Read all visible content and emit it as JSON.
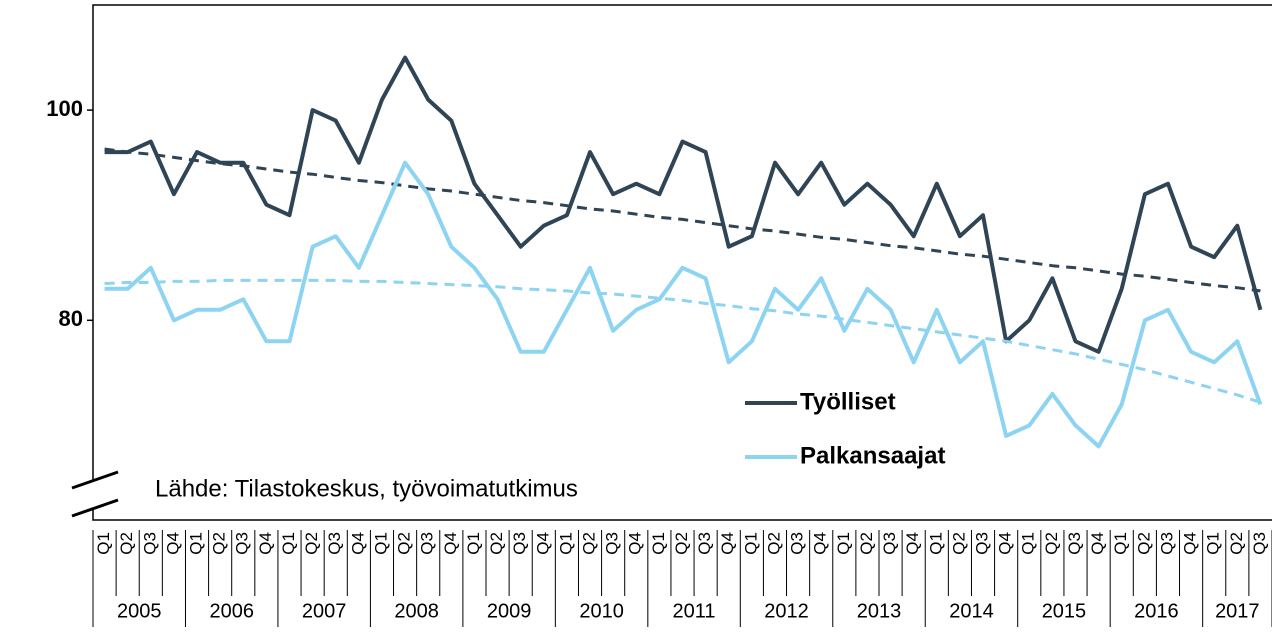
{
  "chart_data": {
    "type": "line",
    "annotation": "Lähde: Tilastokeskus, työvoimatutkimus",
    "categories": [
      "Q1",
      "Q2",
      "Q3",
      "Q4",
      "Q1",
      "Q2",
      "Q3",
      "Q4",
      "Q1",
      "Q2",
      "Q3",
      "Q4",
      "Q1",
      "Q2",
      "Q3",
      "Q4",
      "Q1",
      "Q2",
      "Q3",
      "Q4",
      "Q1",
      "Q2",
      "Q3",
      "Q4",
      "Q1",
      "Q2",
      "Q3",
      "Q4",
      "Q1",
      "Q2",
      "Q3",
      "Q4",
      "Q1",
      "Q2",
      "Q3",
      "Q4",
      "Q1",
      "Q2",
      "Q3",
      "Q4",
      "Q1",
      "Q2",
      "Q3",
      "Q4",
      "Q1",
      "Q2",
      "Q3",
      "Q4",
      "Q1",
      "Q2",
      "Q3"
    ],
    "years": [
      "2005",
      "2006",
      "2007",
      "2008",
      "2009",
      "2010",
      "2011",
      "2012",
      "2013",
      "2014",
      "2015",
      "2016",
      "2017"
    ],
    "ylim": [
      61,
      110
    ],
    "yticks": [
      80,
      100
    ],
    "legend": "right",
    "series": [
      {
        "name": "Työlliset",
        "color": "#2f4454",
        "values": [
          96,
          96,
          97,
          92,
          96,
          95,
          95,
          91,
          90,
          100,
          99,
          95,
          101,
          105,
          101,
          99,
          93,
          90,
          87,
          89,
          90,
          96,
          92,
          93,
          92,
          97,
          96,
          87,
          88,
          95,
          92,
          95,
          91,
          93,
          91,
          88,
          93,
          88,
          90,
          78,
          80,
          84,
          78,
          77,
          83,
          92,
          93,
          87,
          86,
          89,
          81
        ],
        "trend": [
          96.3,
          96.0,
          95.8,
          95.5,
          95.2,
          94.9,
          94.7,
          94.4,
          94.1,
          93.9,
          93.6,
          93.3,
          93.1,
          92.8,
          92.5,
          92.3,
          92.0,
          91.7,
          91.4,
          91.2,
          90.9,
          90.6,
          90.4,
          90.1,
          89.8,
          89.6,
          89.3,
          89.0,
          88.7,
          88.5,
          88.2,
          87.9,
          87.7,
          87.4,
          87.1,
          86.9,
          86.6,
          86.3,
          86.1,
          85.8,
          85.5,
          85.2,
          85.0,
          84.7,
          84.4,
          84.2,
          83.9,
          83.6,
          83.3,
          83.1,
          82.8
        ]
      },
      {
        "name": "Palkansaajat",
        "color": "#8dd3f2",
        "values": [
          83,
          83,
          85,
          80,
          81,
          81,
          82,
          78,
          78,
          87,
          88,
          85,
          90,
          95,
          92,
          87,
          85,
          82,
          77,
          77,
          81,
          85,
          79,
          81,
          82,
          85,
          84,
          76,
          78,
          83,
          81,
          84,
          79,
          83,
          81,
          76,
          81,
          76,
          78,
          69,
          70,
          73,
          70,
          68,
          72,
          80,
          81,
          77,
          76,
          78,
          72
        ],
        "trend": [
          83.5,
          83.6,
          83.6,
          83.7,
          83.7,
          83.8,
          83.8,
          83.8,
          83.8,
          83.8,
          83.8,
          83.7,
          83.7,
          83.6,
          83.5,
          83.4,
          83.3,
          83.2,
          83.0,
          82.9,
          82.8,
          82.6,
          82.5,
          82.3,
          82.1,
          81.9,
          81.6,
          81.4,
          81.1,
          80.9,
          80.6,
          80.4,
          80.1,
          79.8,
          79.5,
          79.2,
          78.9,
          78.6,
          78.3,
          78.0,
          77.6,
          77.2,
          76.8,
          76.3,
          75.8,
          75.3,
          74.7,
          74.1,
          73.5,
          72.9,
          72.2
        ]
      }
    ]
  }
}
